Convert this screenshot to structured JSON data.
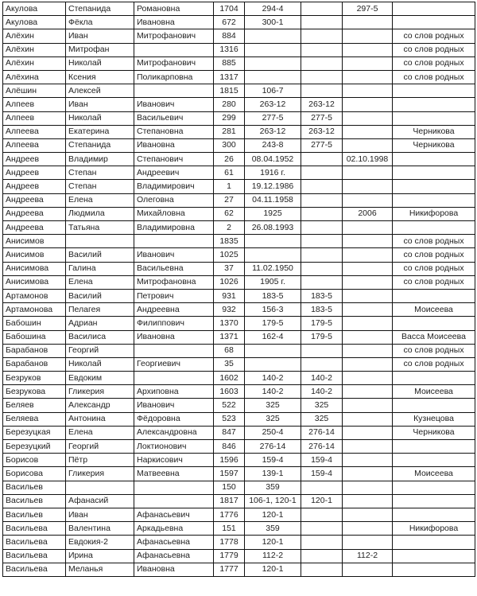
{
  "rows": [
    [
      "Акулова",
      "Степанида",
      "Романовна",
      "1704",
      "294-4",
      "",
      "297-5",
      ""
    ],
    [
      "Акулова",
      "Фёкла",
      "Ивановна",
      "672",
      "300-1",
      "",
      "",
      ""
    ],
    [
      "Алёхин",
      "Иван",
      "Митрофанович",
      "884",
      "",
      "",
      "",
      "со слов родных"
    ],
    [
      "Алёхин",
      "Митрофан",
      "",
      "1316",
      "",
      "",
      "",
      "со слов родных"
    ],
    [
      "Алёхин",
      "Николай",
      "Митрофанович",
      "885",
      "",
      "",
      "",
      "со слов родных"
    ],
    [
      "Алёхина",
      "Ксения",
      "Поликарповна",
      "1317",
      "",
      "",
      "",
      "со слов родных"
    ],
    [
      "Алёшин",
      "Алексей",
      "",
      "1815",
      "106-7",
      "",
      "",
      ""
    ],
    [
      "Алпеев",
      "Иван",
      "Иванович",
      "280",
      "263-12",
      "263-12",
      "",
      ""
    ],
    [
      "Алпеев",
      "Николай",
      "Васильевич",
      "299",
      "277-5",
      "277-5",
      "",
      ""
    ],
    [
      "Алпеева",
      "Екатерина",
      "Степановна",
      "281",
      "263-12",
      "263-12",
      "",
      "Черникова"
    ],
    [
      "Алпеева",
      "Степанида",
      "Ивановна",
      "300",
      "243-8",
      "277-5",
      "",
      "Черникова"
    ],
    [
      "Андреев",
      "Владимир",
      "Степанович",
      "26",
      "08.04.1952",
      "",
      "02.10.1998",
      ""
    ],
    [
      "Андреев",
      "Степан",
      "Андреевич",
      "61",
      "1916 г.",
      "",
      "",
      ""
    ],
    [
      "Андреев",
      "Степан",
      "Владимирович",
      "1",
      "19.12.1986",
      "",
      "",
      ""
    ],
    [
      "Андреева",
      "Елена",
      "Олеговна",
      "27",
      "04.11.1958",
      "",
      "",
      ""
    ],
    [
      "Андреева",
      "Людмила",
      "Михайловна",
      "62",
      "1925",
      "",
      "2006",
      "Никифорова"
    ],
    [
      "Андреева",
      "Татьяна",
      "Владимировна",
      "2",
      "26.08.1993",
      "",
      "",
      ""
    ],
    [
      "Анисимов",
      "",
      "",
      "1835",
      "",
      "",
      "",
      "со слов родных"
    ],
    [
      "Анисимов",
      "Василий",
      "Иванович",
      "1025",
      "",
      "",
      "",
      "со слов родных"
    ],
    [
      "Анисимова",
      "Галина",
      "Васильевна",
      "37",
      "11.02.1950",
      "",
      "",
      "со слов родных"
    ],
    [
      "Анисимова",
      "Елена",
      "Митрофановна",
      "1026",
      "1905 г.",
      "",
      "",
      "со слов родных"
    ],
    [
      "Артамонов",
      "Василий",
      "Петрович",
      "931",
      "183-5",
      "183-5",
      "",
      ""
    ],
    [
      "Артамонова",
      "Пелагея",
      "Андреевна",
      "932",
      "156-3",
      "183-5",
      "",
      "Моисеева"
    ],
    [
      "Бабошин",
      "Адриан",
      "Филиппович",
      "1370",
      "179-5",
      "179-5",
      "",
      ""
    ],
    [
      "Бабошина",
      "Василиса",
      "Ивановна",
      "1371",
      "162-4",
      "179-5",
      "",
      "Васса Моисеева"
    ],
    [
      "Барабанов",
      "Георгий",
      "",
      "68",
      "",
      "",
      "",
      "со слов родных"
    ],
    [
      "Барабанов",
      "Николай",
      "Георгиевич",
      "35",
      "",
      "",
      "",
      "со слов родных"
    ],
    [
      "Безруков",
      "Евдоким",
      "",
      "1602",
      "140-2",
      "140-2",
      "",
      ""
    ],
    [
      "Безрукова",
      "Гликерия",
      "Архиповна",
      "1603",
      "140-2",
      "140-2",
      "",
      "Моисеева"
    ],
    [
      "Беляев",
      "Александр",
      "Иванович",
      "522",
      "325",
      "325",
      "",
      ""
    ],
    [
      "Беляева",
      "Антонина",
      "Фёдоровна",
      "523",
      "325",
      "325",
      "",
      "Кузнецова"
    ],
    [
      "Березуцкая",
      "Елена",
      "Александровна",
      "847",
      "250-4",
      "276-14",
      "",
      "Черникова"
    ],
    [
      "Березуцкий",
      "Георгий",
      "Локтионович",
      "846",
      "276-14",
      "276-14",
      "",
      ""
    ],
    [
      "Борисов",
      "Пётр",
      "Наркисович",
      "1596",
      "159-4",
      "159-4",
      "",
      ""
    ],
    [
      "Борисова",
      "Гликерия",
      "Матвеевна",
      "1597",
      "139-1",
      "159-4",
      "",
      "Моисеева"
    ],
    [
      "Васильев",
      "",
      "",
      "150",
      "359",
      "",
      "",
      ""
    ],
    [
      "Васильев",
      "Афанасий",
      "",
      "1817",
      "106-1, 120-1",
      "120-1",
      "",
      ""
    ],
    [
      "Васильев",
      "Иван",
      "Афанасьевич",
      "1776",
      "120-1",
      "",
      "",
      ""
    ],
    [
      "Васильева",
      "Валентина",
      "Аркадьевна",
      "151",
      "359",
      "",
      "",
      "Никифорова"
    ],
    [
      "Васильева",
      "Евдокия-2",
      "Афанасьевна",
      "1778",
      "120-1",
      "",
      "",
      ""
    ],
    [
      "Васильева",
      "Ирина",
      "Афанасьевна",
      "1779",
      "112-2",
      "",
      "112-2",
      ""
    ],
    [
      "Васильева",
      "Меланья",
      "Ивановна",
      "1777",
      "120-1",
      "",
      "",
      ""
    ]
  ]
}
